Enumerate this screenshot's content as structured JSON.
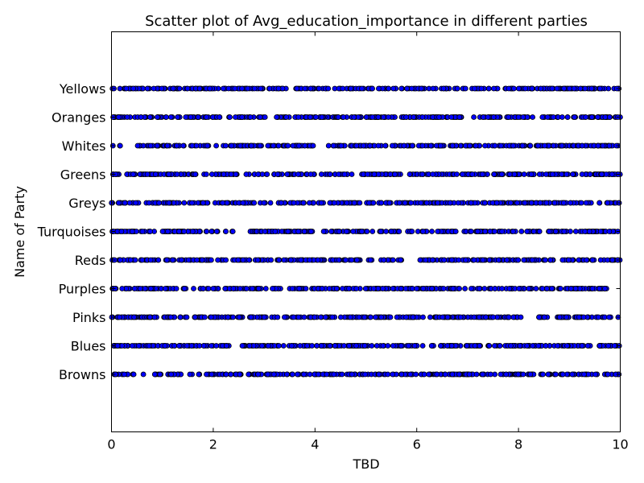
{
  "chart_data": {
    "type": "scatter",
    "title": "Scatter plot of Avg_education_importance in different parties",
    "xlabel": "TBD",
    "ylabel": "Name of Party",
    "xlim": [
      0,
      10
    ],
    "xticks": [
      "0",
      "2",
      "4",
      "6",
      "8",
      "10"
    ],
    "categories": [
      "Browns",
      "Blues",
      "Pinks",
      "Purples",
      "Reds",
      "Turquoises",
      "Greys",
      "Greens",
      "Whites",
      "Oranges",
      "Yellows"
    ],
    "marker_color": "#0000ff",
    "marker_edge_color": "#000000",
    "grid": false,
    "gaps": {
      "Reds": [
        [
          5.75,
          6.05
        ]
      ],
      "Turquoises": [
        [
          2.45,
          2.65
        ]
      ],
      "Whites": [
        [
          0.2,
          0.38
        ],
        [
          4.0,
          4.12
        ]
      ],
      "Yellows": [
        [
          3.45,
          3.57
        ]
      ]
    }
  }
}
